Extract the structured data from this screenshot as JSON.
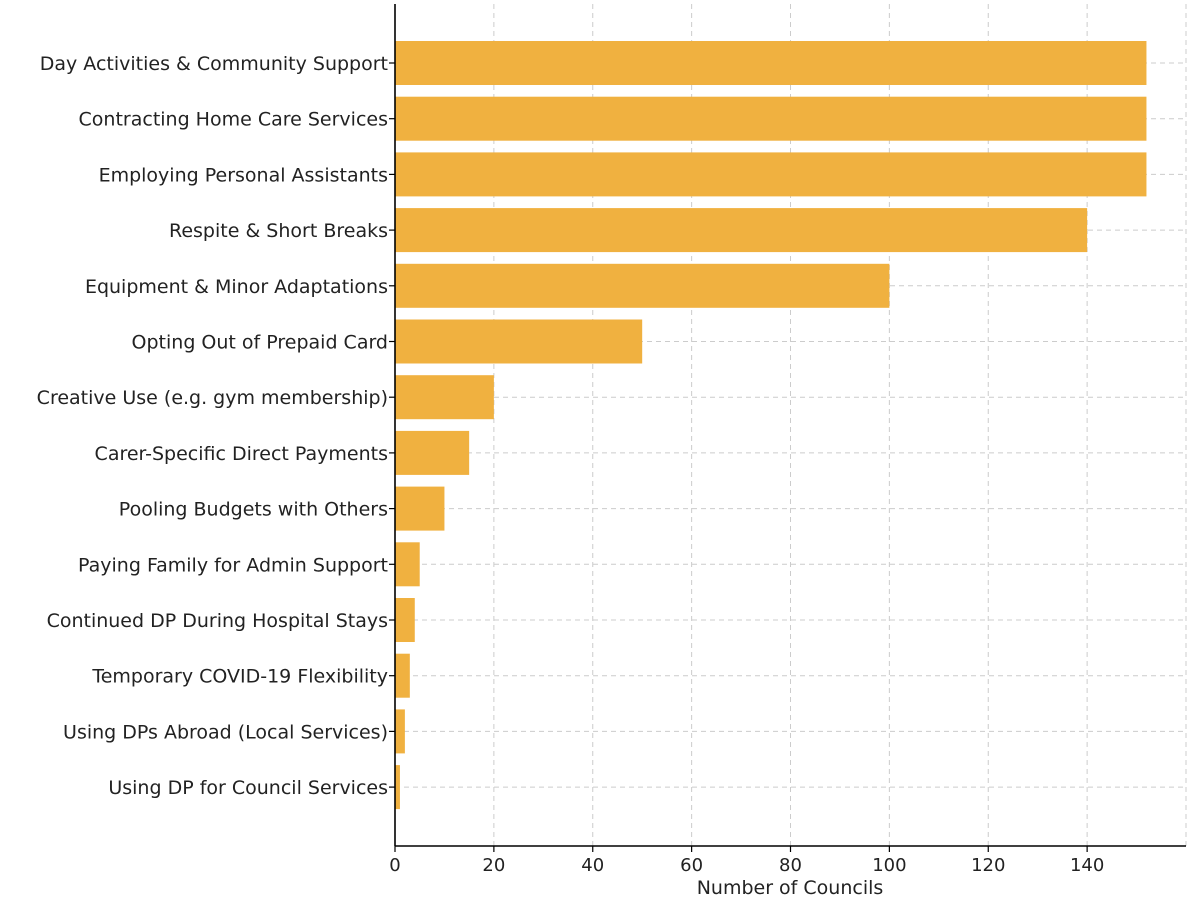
{
  "chart_data": {
    "type": "bar",
    "orientation": "horizontal",
    "title": "",
    "xlabel": "Number of Councils",
    "ylabel": "",
    "xlim": [
      0,
      160
    ],
    "xticks": [
      0,
      20,
      40,
      60,
      80,
      100,
      120,
      140
    ],
    "grid": true,
    "bar_color": "#F0B140",
    "categories": [
      "Day Activities & Community Support",
      "Contracting Home Care Services",
      "Employing Personal Assistants",
      "Respite & Short Breaks",
      "Equipment & Minor Adaptations",
      "Opting Out of Prepaid Card",
      "Creative Use (e.g. gym membership)",
      "Carer-Specific Direct Payments",
      "Pooling Budgets with Others",
      "Paying Family for Admin Support",
      "Continued DP During Hospital Stays",
      "Temporary COVID-19 Flexibility",
      "Using DPs Abroad (Local Services)",
      "Using DP for Council Services"
    ],
    "values": [
      152,
      152,
      152,
      140,
      100,
      50,
      20,
      15,
      10,
      5,
      4,
      3,
      2,
      1
    ]
  }
}
